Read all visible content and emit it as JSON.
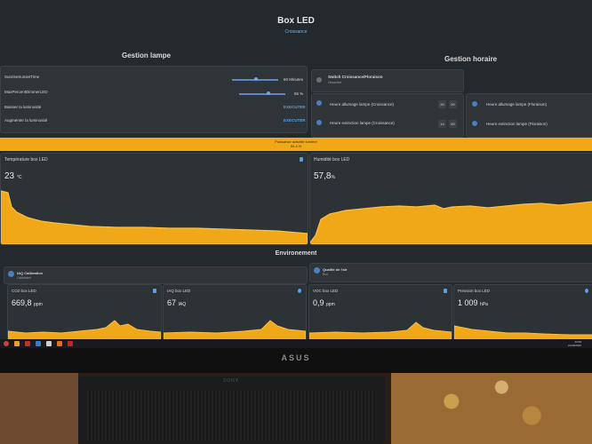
{
  "header": {
    "title": "Box LED",
    "subtitle": "Croissance"
  },
  "lamp_section": {
    "title": "Gestion lampe",
    "rows": [
      {
        "label": "SunriseSunsetTime",
        "value": "60 Minutes",
        "level": 0.55
      },
      {
        "label": "MaxPercentDimmerLED",
        "value": "65 %",
        "level": 0.65
      },
      {
        "label": "Baisser la luminosité",
        "action": "EXECUTER"
      },
      {
        "label": "Augmenter la luminosité",
        "action": "EXECUTER"
      }
    ]
  },
  "schedule_section": {
    "title": "Gestion horaire",
    "switch": {
      "label": "Switch Croissance/Floraison",
      "state": "Désactivé"
    },
    "croissance": [
      {
        "label": "Heure allumage lampe (Croissance)",
        "hour": "20",
        "minute": "00"
      },
      {
        "label": "Heure extinction lampe (Croissance)",
        "hour": "14",
        "minute": "00"
      }
    ],
    "floraison": [
      {
        "label": "Heure allumage lampe (Floraison)"
      },
      {
        "label": "Heure extinction lampe (Floraison)"
      }
    ]
  },
  "banner": {
    "line1": "Puissance actuelle lumière",
    "line2": "65.4 %"
  },
  "graphs": {
    "temperature": {
      "title": "Température box LED",
      "value": "23",
      "unit": "°C"
    },
    "humidity": {
      "title": "Humidité box LED",
      "value": "57,8",
      "unit": "%"
    }
  },
  "environment": {
    "title": "Environement",
    "iaq_card": {
      "title": "IAQ Calibration",
      "status": "Calibrated"
    },
    "air_card": {
      "title": "Qualité de l'air",
      "status": "Bon"
    },
    "sensors": [
      {
        "title": "CO2 box LED",
        "value": "669,8",
        "unit": "ppm"
      },
      {
        "title": "IAQ box LED",
        "value": "67",
        "unit": "IAQ"
      },
      {
        "title": "VOC box LED",
        "value": "0,9",
        "unit": "ppm"
      },
      {
        "title": "Pression box LED",
        "value": "1 009",
        "unit": "hPa"
      }
    ]
  },
  "taskbar": {
    "time": "23:59",
    "date": "21/09/2022"
  },
  "monitor": {
    "brand": "ASUS",
    "speaker": "SONY"
  },
  "colors": {
    "accent": "#f0a818",
    "primary": "#5a9de8",
    "card": "#2e3438",
    "background": "#24292d"
  }
}
